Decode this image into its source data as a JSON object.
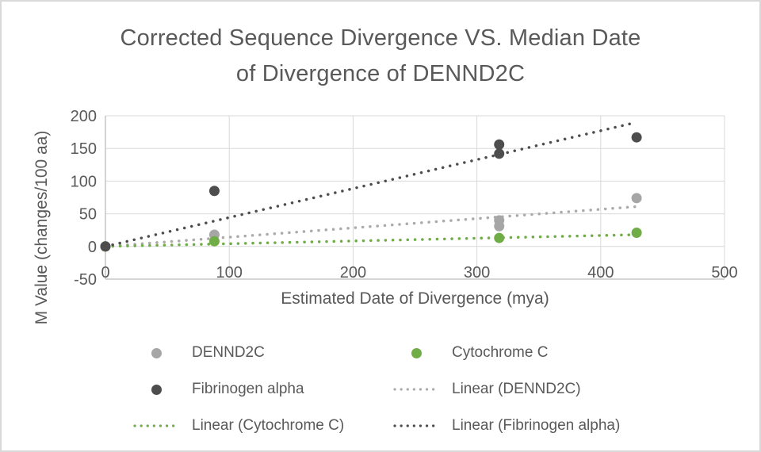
{
  "title_lines": [
    "Corrected Sequence Divergence VS. Median Date",
    "of Divergence of DENND2C"
  ],
  "chart_data": {
    "type": "scatter",
    "title": "Corrected Sequence Divergence VS. Median Date of Divergence of DENND2C",
    "xlabel": "Estimated Date of Divergence (mya)",
    "ylabel": "M Value (changes/100 aa)",
    "xlim": [
      0,
      500
    ],
    "ylim": [
      -50,
      200
    ],
    "x_ticks": [
      0,
      100,
      200,
      300,
      400,
      500
    ],
    "y_ticks": [
      -50,
      0,
      50,
      100,
      150,
      200
    ],
    "grid": true,
    "legend_position": "bottom",
    "colors": {
      "dennd2c": "#a6a6a6",
      "cytochrome_c": "#70ad47",
      "fibrinogen_alpha": "#4d4d4d",
      "dennd2c_trend": "#ababab",
      "gridline": "#d9d9d9",
      "axis_line": "#c6c6c6",
      "text": "#595959"
    },
    "series": [
      {
        "name": "DENND2C",
        "color": "#a6a6a6",
        "points": [
          [
            0,
            0
          ],
          [
            88,
            18
          ],
          [
            318,
            31
          ],
          [
            318,
            40
          ],
          [
            429,
            74
          ]
        ]
      },
      {
        "name": "Cytochrome C",
        "color": "#70ad47",
        "points": [
          [
            0,
            0
          ],
          [
            88,
            8
          ],
          [
            318,
            13
          ],
          [
            429,
            21
          ]
        ]
      },
      {
        "name": "Fibrinogen alpha",
        "color": "#4d4d4d",
        "points": [
          [
            0,
            0
          ],
          [
            88,
            85
          ],
          [
            318,
            142
          ],
          [
            318,
            156
          ],
          [
            429,
            167
          ]
        ]
      }
    ],
    "trendlines": [
      {
        "name": "Linear (DENND2C)",
        "color": "#ababab",
        "from": [
          0,
          0
        ],
        "to": [
          429,
          61
        ]
      },
      {
        "name": "Linear (Cytochrome C)",
        "color": "#70ad47",
        "from": [
          0,
          0
        ],
        "to": [
          429,
          18
        ]
      },
      {
        "name": "Linear (Fibrinogen alpha)",
        "color": "#4d4d4d",
        "from": [
          0,
          0
        ],
        "to": [
          429,
          190
        ]
      }
    ]
  },
  "legend": {
    "items": [
      {
        "label": "DENND2C",
        "type": "dot",
        "color": "#a6a6a6"
      },
      {
        "label": "Cytochrome C",
        "type": "dot",
        "color": "#70ad47"
      },
      {
        "label": "Fibrinogen alpha",
        "type": "dot",
        "color": "#4d4d4d"
      },
      {
        "label": "Linear (DENND2C)",
        "type": "line",
        "color": "#ababab"
      },
      {
        "label": "Linear (Cytochrome C)",
        "type": "line",
        "color": "#70ad47"
      },
      {
        "label": "Linear (Fibrinogen alpha)",
        "type": "line",
        "color": "#4d4d4d"
      }
    ]
  }
}
